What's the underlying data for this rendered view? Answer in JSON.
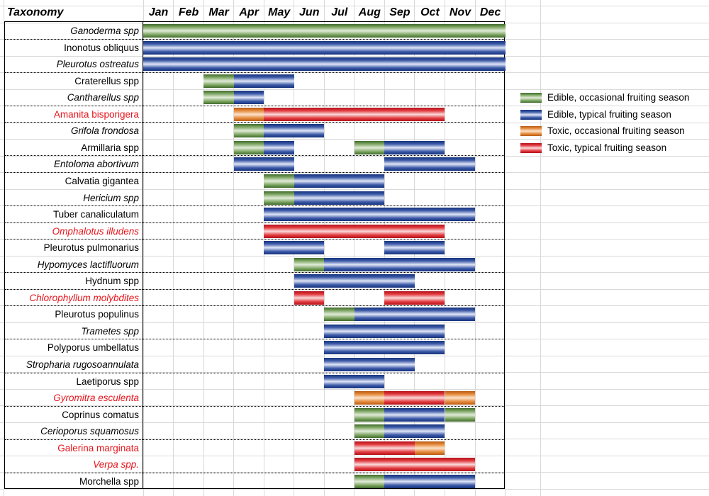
{
  "header": {
    "taxonomy": "Taxonomy"
  },
  "chart_data": {
    "type": "gantt",
    "months": [
      "Jan",
      "Feb",
      "Mar",
      "Apr",
      "May",
      "Jun",
      "Jul",
      "Aug",
      "Sep",
      "Oct",
      "Nov",
      "Dec"
    ],
    "legend": [
      {
        "key": "edible_occasional",
        "label": "Edible, occasional fruiting season",
        "color": "#5e8a45"
      },
      {
        "key": "edible_typical",
        "label": "Edible, typical fruiting season",
        "color": "#2a4a96"
      },
      {
        "key": "toxic_occasional",
        "label": "Toxic, occasional fruiting season",
        "color": "#de7a2e"
      },
      {
        "key": "toxic_typical",
        "label": "Toxic, typical fruiting season",
        "color": "#d8262c"
      }
    ],
    "rows": [
      {
        "name": "Ganoderma spp",
        "italic": true,
        "toxic": false,
        "segments": [
          {
            "start": "Jan",
            "end": "Dec",
            "season": "edible_occasional"
          }
        ]
      },
      {
        "name": "Inonotus obliquus",
        "italic": false,
        "toxic": false,
        "segments": [
          {
            "start": "Jan",
            "end": "Dec",
            "season": "edible_typical"
          }
        ]
      },
      {
        "name": "Pleurotus ostreatus",
        "italic": true,
        "toxic": false,
        "segments": [
          {
            "start": "Jan",
            "end": "Dec",
            "season": "edible_typical"
          }
        ]
      },
      {
        "name": "Craterellus spp",
        "italic": false,
        "toxic": false,
        "segments": [
          {
            "start": "Mar",
            "end": "Mar",
            "season": "edible_occasional"
          },
          {
            "start": "Apr",
            "end": "May",
            "season": "edible_typical"
          }
        ]
      },
      {
        "name": "Cantharellus spp",
        "italic": true,
        "toxic": false,
        "segments": [
          {
            "start": "Mar",
            "end": "Mar",
            "season": "edible_occasional"
          },
          {
            "start": "Apr",
            "end": "Apr",
            "season": "edible_typical"
          }
        ]
      },
      {
        "name": "Amanita bisporigera",
        "italic": false,
        "toxic": true,
        "segments": [
          {
            "start": "Apr",
            "end": "Apr",
            "season": "toxic_occasional"
          },
          {
            "start": "May",
            "end": "Oct",
            "season": "toxic_typical"
          }
        ]
      },
      {
        "name": "Grifola frondosa",
        "italic": true,
        "toxic": false,
        "segments": [
          {
            "start": "Apr",
            "end": "Apr",
            "season": "edible_occasional"
          },
          {
            "start": "May",
            "end": "Jun",
            "season": "edible_typical"
          }
        ]
      },
      {
        "name": "Armillaria spp",
        "italic": false,
        "toxic": false,
        "segments": [
          {
            "start": "Apr",
            "end": "Apr",
            "season": "edible_occasional"
          },
          {
            "start": "May",
            "end": "May",
            "season": "edible_typical"
          },
          {
            "start": "Aug",
            "end": "Aug",
            "season": "edible_occasional"
          },
          {
            "start": "Sep",
            "end": "Oct",
            "season": "edible_typical"
          }
        ]
      },
      {
        "name": "Entoloma abortivum",
        "italic": true,
        "toxic": false,
        "segments": [
          {
            "start": "Apr",
            "end": "May",
            "season": "edible_typical"
          },
          {
            "start": "Sep",
            "end": "Nov",
            "season": "edible_typical"
          }
        ]
      },
      {
        "name": "Calvatia gigantea",
        "italic": false,
        "toxic": false,
        "segments": [
          {
            "start": "May",
            "end": "May",
            "season": "edible_occasional"
          },
          {
            "start": "Jun",
            "end": "Aug",
            "season": "edible_typical"
          }
        ]
      },
      {
        "name": "Hericium spp",
        "italic": true,
        "toxic": false,
        "segments": [
          {
            "start": "May",
            "end": "May",
            "season": "edible_occasional"
          },
          {
            "start": "Jun",
            "end": "Aug",
            "season": "edible_typical"
          }
        ]
      },
      {
        "name": "Tuber canaliculatum",
        "italic": false,
        "toxic": false,
        "segments": [
          {
            "start": "May",
            "end": "Nov",
            "season": "edible_typical"
          }
        ]
      },
      {
        "name": "Omphalotus illudens",
        "italic": true,
        "toxic": true,
        "segments": [
          {
            "start": "May",
            "end": "Oct",
            "season": "toxic_typical"
          }
        ]
      },
      {
        "name": "Pleurotus pulmonarius",
        "italic": false,
        "toxic": false,
        "segments": [
          {
            "start": "May",
            "end": "Jun",
            "season": "edible_typical"
          },
          {
            "start": "Sep",
            "end": "Oct",
            "season": "edible_typical"
          }
        ]
      },
      {
        "name": "Hypomyces lactifluorum",
        "italic": true,
        "toxic": false,
        "segments": [
          {
            "start": "Jun",
            "end": "Jun",
            "season": "edible_occasional"
          },
          {
            "start": "Jul",
            "end": "Nov",
            "season": "edible_typical"
          }
        ]
      },
      {
        "name": "Hydnum spp",
        "italic": false,
        "toxic": false,
        "segments": [
          {
            "start": "Jun",
            "end": "Sep",
            "season": "edible_typical"
          }
        ]
      },
      {
        "name": "Chlorophyllum molybdites",
        "italic": true,
        "toxic": true,
        "segments": [
          {
            "start": "Jun",
            "end": "Jun",
            "season": "toxic_typical"
          },
          {
            "start": "Sep",
            "end": "Oct",
            "season": "toxic_typical"
          }
        ]
      },
      {
        "name": "Pleurotus populinus",
        "italic": false,
        "toxic": false,
        "segments": [
          {
            "start": "Jul",
            "end": "Jul",
            "season": "edible_occasional"
          },
          {
            "start": "Aug",
            "end": "Nov",
            "season": "edible_typical"
          }
        ]
      },
      {
        "name": "Trametes spp",
        "italic": true,
        "toxic": false,
        "segments": [
          {
            "start": "Jul",
            "end": "Oct",
            "season": "edible_typical"
          }
        ]
      },
      {
        "name": "Polyporus umbellatus",
        "italic": false,
        "toxic": false,
        "segments": [
          {
            "start": "Jul",
            "end": "Oct",
            "season": "edible_typical"
          }
        ]
      },
      {
        "name": "Stropharia rugosoannulata",
        "italic": true,
        "toxic": false,
        "segments": [
          {
            "start": "Jul",
            "end": "Sep",
            "season": "edible_typical"
          }
        ]
      },
      {
        "name": "Laetiporus spp",
        "italic": false,
        "toxic": false,
        "segments": [
          {
            "start": "Jul",
            "end": "Aug",
            "season": "edible_typical"
          }
        ]
      },
      {
        "name": "Gyromitra esculenta",
        "italic": true,
        "toxic": true,
        "segments": [
          {
            "start": "Aug",
            "end": "Aug",
            "season": "toxic_occasional"
          },
          {
            "start": "Sep",
            "end": "Oct",
            "season": "toxic_typical"
          },
          {
            "start": "Nov",
            "end": "Nov",
            "season": "toxic_occasional"
          }
        ]
      },
      {
        "name": "Coprinus comatus",
        "italic": false,
        "toxic": false,
        "segments": [
          {
            "start": "Aug",
            "end": "Aug",
            "season": "edible_occasional"
          },
          {
            "start": "Sep",
            "end": "Oct",
            "season": "edible_typical"
          },
          {
            "start": "Nov",
            "end": "Nov",
            "season": "edible_occasional"
          }
        ]
      },
      {
        "name": "Cerioporus squamosus",
        "italic": true,
        "toxic": false,
        "segments": [
          {
            "start": "Aug",
            "end": "Aug",
            "season": "edible_occasional"
          },
          {
            "start": "Sep",
            "end": "Oct",
            "season": "edible_typical"
          }
        ]
      },
      {
        "name": "Galerina marginata",
        "italic": false,
        "toxic": true,
        "segments": [
          {
            "start": "Aug",
            "end": "Sep",
            "season": "toxic_typical"
          },
          {
            "start": "Oct",
            "end": "Oct",
            "season": "toxic_occasional"
          }
        ]
      },
      {
        "name": "Verpa spp.",
        "italic": true,
        "toxic": true,
        "segments": [
          {
            "start": "Aug",
            "end": "Nov",
            "season": "toxic_typical"
          }
        ]
      },
      {
        "name": "Morchella spp",
        "italic": false,
        "toxic": false,
        "segments": [
          {
            "start": "Aug",
            "end": "Aug",
            "season": "edible_occasional"
          },
          {
            "start": "Sep",
            "end": "Nov",
            "season": "edible_typical"
          }
        ]
      }
    ],
    "group_separators_after_row": [
      0,
      2,
      4,
      5,
      7,
      8,
      10,
      11,
      12,
      14,
      15,
      16,
      18,
      20,
      22,
      24,
      26
    ]
  }
}
